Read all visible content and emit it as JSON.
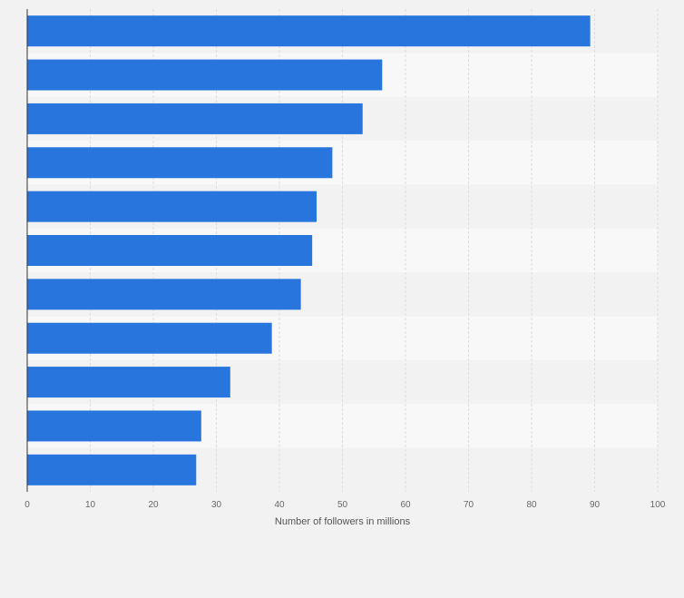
{
  "chart_data": {
    "type": "bar",
    "orientation": "horizontal",
    "title": "",
    "xlabel": "Number of followers in millions",
    "ylabel": "",
    "categories": [
      "",
      "",
      "",
      "",
      "",
      "",
      "",
      "",
      "",
      "",
      ""
    ],
    "values": [
      89.3,
      56.3,
      53.2,
      48.4,
      45.9,
      45.2,
      43.4,
      38.8,
      32.2,
      27.6,
      26.8
    ],
    "xlim": [
      0,
      100
    ],
    "xticks": [
      0,
      10,
      20,
      30,
      40,
      50,
      60,
      70,
      80,
      90,
      100
    ],
    "grid": true,
    "colors": {
      "bar": "#2876dd",
      "background": "#f2f2f2",
      "band_light": "#f8f8f8",
      "band_dark": "#f2f2f2",
      "grid": "#dddddd",
      "axis": "#333333"
    }
  }
}
